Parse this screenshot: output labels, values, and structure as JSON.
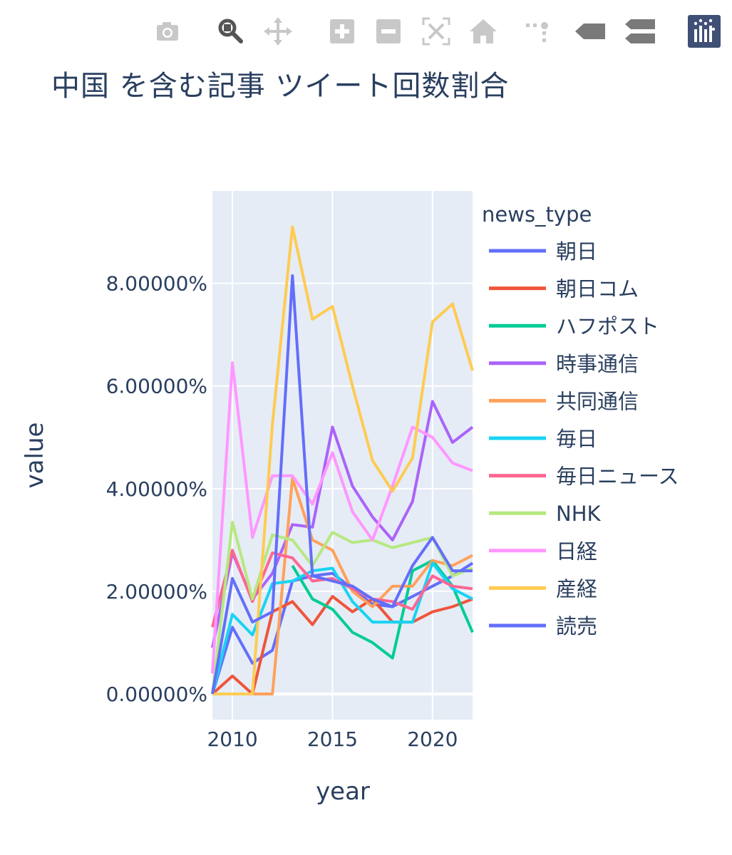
{
  "modebar": {
    "buttons": [
      {
        "icon": "camera-icon",
        "label": "Download plot as a png",
        "active": false
      },
      {
        "icon": "zoom-icon",
        "label": "Zoom",
        "active": true
      },
      {
        "icon": "pan-icon",
        "label": "Pan",
        "active": false
      },
      {
        "icon": "zoom-in-icon",
        "label": "Zoom in",
        "active": false
      },
      {
        "icon": "zoom-out-icon",
        "label": "Zoom out",
        "active": false
      },
      {
        "icon": "autoscale-icon",
        "label": "Autoscale",
        "active": false
      },
      {
        "icon": "reset-axes-icon",
        "label": "Reset axes",
        "active": false
      },
      {
        "icon": "spike-lines-icon",
        "label": "Toggle spike lines",
        "active": false
      },
      {
        "icon": "hover-closest-icon",
        "label": "Show closest data on hover",
        "active": false
      },
      {
        "icon": "hover-compare-icon",
        "label": "Compare data on hover",
        "active": false
      },
      {
        "icon": "plotly-logo-icon",
        "label": "Produced with Plotly",
        "active": false
      }
    ]
  },
  "chart_data": {
    "type": "line",
    "title": "中国 を含む記事 ツイート回数割合",
    "xlabel": "year",
    "ylabel": "value",
    "legend_title": "news_type",
    "legend_position": "right",
    "grid": true,
    "xlim": [
      2009,
      2022
    ],
    "ylim": [
      -0.5,
      9.8
    ],
    "xticks": [
      2010,
      2015,
      2020
    ],
    "yticks": [
      0,
      2,
      4,
      6,
      8
    ],
    "ytick_labels": [
      "0.00000%",
      "2.00000%",
      "4.00000%",
      "6.00000%",
      "8.00000%"
    ],
    "x": [
      2009,
      2010,
      2011,
      2012,
      2013,
      2014,
      2015,
      2016,
      2017,
      2018,
      2019,
      2020,
      2021,
      2022
    ],
    "series": [
      {
        "name": "朝日",
        "color": "#636efa",
        "values": [
          0.0,
          1.3,
          0.6,
          0.85,
          2.2,
          2.3,
          2.35,
          2.05,
          1.75,
          1.7,
          1.9,
          2.1,
          2.3,
          2.55
        ]
      },
      {
        "name": "朝日コム",
        "color": "#ef553b",
        "values": [
          0.0,
          0.35,
          0.0,
          1.6,
          1.8,
          1.35,
          1.9,
          1.6,
          1.85,
          1.4,
          1.4,
          1.6,
          1.7,
          1.85
        ]
      },
      {
        "name": "ハフポスト",
        "color": "#00cc96",
        "values": [
          null,
          null,
          null,
          null,
          2.5,
          1.85,
          1.65,
          1.2,
          1.0,
          0.7,
          2.4,
          2.6,
          2.1,
          1.2
        ]
      },
      {
        "name": "時事通信",
        "color": "#ab63fa",
        "values": [
          0.9,
          2.75,
          1.85,
          2.35,
          3.3,
          3.25,
          5.2,
          4.05,
          3.45,
          3.0,
          3.75,
          5.7,
          4.9,
          5.2
        ]
      },
      {
        "name": "共同通信",
        "color": "#ffa15a",
        "values": [
          0.0,
          0.0,
          0.0,
          0.0,
          4.2,
          3.0,
          2.8,
          2.0,
          1.7,
          2.1,
          2.1,
          2.6,
          2.5,
          2.7
        ]
      },
      {
        "name": "毎日",
        "color": "#19d3f3",
        "values": [
          0.0,
          1.55,
          1.15,
          2.15,
          2.2,
          2.4,
          2.45,
          1.8,
          1.4,
          1.4,
          1.4,
          2.55,
          2.05,
          1.85
        ]
      },
      {
        "name": "毎日ニュース",
        "color": "#ff6692",
        "values": [
          1.3,
          2.8,
          1.8,
          2.75,
          2.65,
          2.2,
          2.25,
          2.05,
          1.85,
          1.8,
          1.65,
          2.3,
          2.1,
          2.05
        ]
      },
      {
        "name": "NHK",
        "color": "#b6e880",
        "values": [
          0.0,
          3.35,
          1.85,
          3.1,
          3.0,
          2.5,
          3.15,
          2.95,
          3.0,
          2.85,
          2.95,
          3.05,
          2.3,
          2.45
        ]
      },
      {
        "name": "日経",
        "color": "#ff97ff",
        "values": [
          0.4,
          6.45,
          3.05,
          4.25,
          4.25,
          3.7,
          4.7,
          3.55,
          3.0,
          4.05,
          5.2,
          5.0,
          4.5,
          4.35
        ]
      },
      {
        "name": "産経",
        "color": "#fecb52",
        "values": [
          0.0,
          0.0,
          0.0,
          5.25,
          9.1,
          7.3,
          7.55,
          6.0,
          4.55,
          3.95,
          4.6,
          7.25,
          7.6,
          6.3
        ]
      },
      {
        "name": "読売",
        "color": "#636efa",
        "values": [
          0.0,
          2.25,
          1.4,
          1.6,
          8.15,
          2.3,
          2.2,
          2.1,
          1.85,
          1.7,
          2.5,
          3.05,
          2.4,
          2.4
        ]
      }
    ]
  }
}
